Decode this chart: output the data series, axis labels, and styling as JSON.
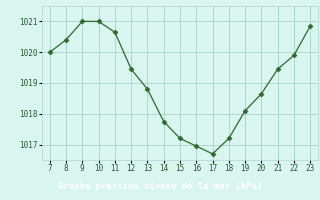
{
  "x": [
    7,
    8,
    9,
    10,
    11,
    12,
    13,
    14,
    15,
    16,
    17,
    18,
    19,
    20,
    21,
    22,
    23
  ],
  "y": [
    1020.0,
    1020.4,
    1021.0,
    1021.0,
    1020.65,
    1019.45,
    1018.8,
    1017.75,
    1017.2,
    1016.95,
    1016.7,
    1017.2,
    1018.1,
    1018.65,
    1019.45,
    1019.9,
    1020.85
  ],
  "line_color": "#2d6a2d",
  "marker": "D",
  "marker_size": 2.5,
  "background_color": "#d8f5f0",
  "label_bg_color": "#4a8c4a",
  "grid_color": "#b0d8d0",
  "xlabel": "Graphe pression niveau de la mer (hPa)",
  "xlabel_color": "#ffffff",
  "tick_color": "#2d5a2d",
  "ylim": [
    1016.5,
    1021.5
  ],
  "yticks": [
    1017,
    1018,
    1019,
    1020,
    1021
  ],
  "xticks": [
    7,
    8,
    9,
    10,
    11,
    12,
    13,
    14,
    15,
    16,
    17,
    18,
    19,
    20,
    21,
    22,
    23
  ],
  "figsize": [
    3.2,
    2.0
  ],
  "dpi": 100
}
